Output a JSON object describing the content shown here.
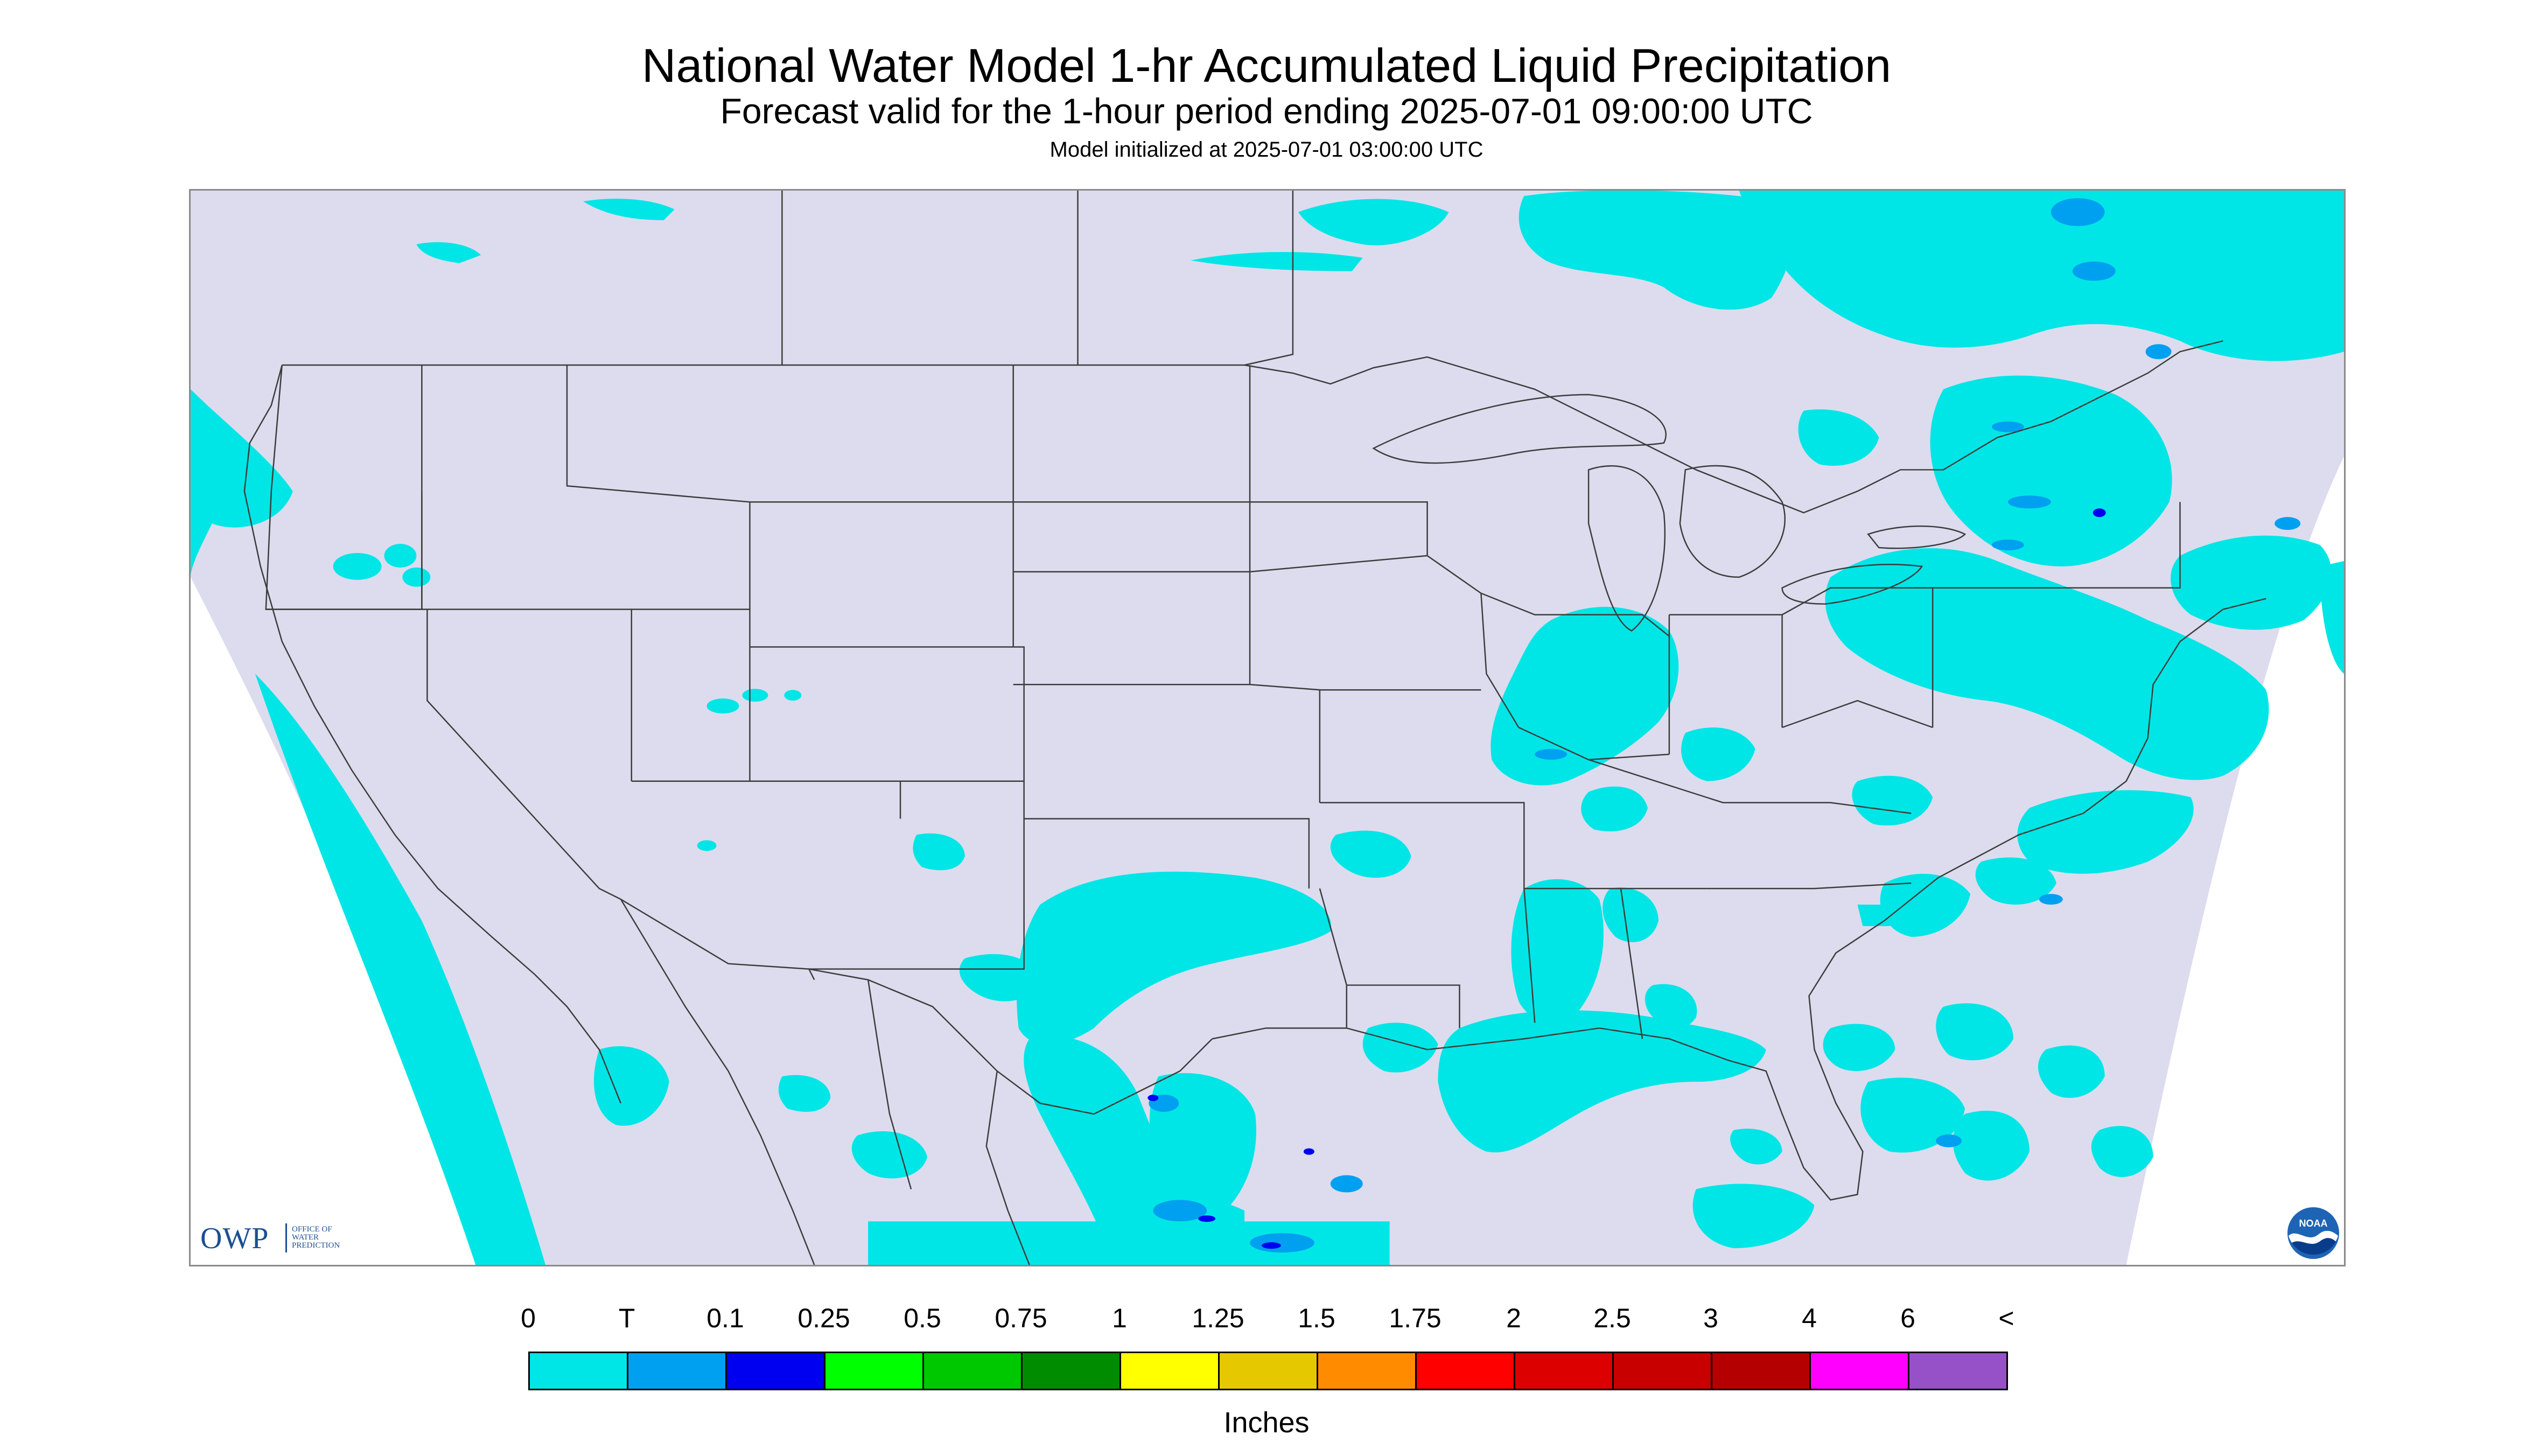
{
  "header": {
    "title": "National Water Model 1-hr Accumulated Liquid Precipitation",
    "subtitle": "Forecast valid for the 1-hour period ending 2025-07-01 09:00:00 UTC",
    "init": "Model initialized at 2025-07-01 03:00:00 UTC"
  },
  "map": {
    "background_color": "#dcdcee",
    "outside_color": "#ffffff",
    "boundary_color": "#3c3c3c",
    "light_precip_color": "#00e6e6"
  },
  "logos": {
    "owp_letters": "OWP",
    "owp_lines": [
      "OFFICE OF",
      "WATER",
      "PREDICTION"
    ],
    "noaa": "NOAA"
  },
  "legend": {
    "tick_labels": [
      "0",
      "T",
      "0.1",
      "0.25",
      "0.5",
      "0.75",
      "1",
      "1.25",
      "1.5",
      "1.75",
      "2",
      "2.5",
      "3",
      "4",
      "6",
      "<"
    ],
    "bin_colors": [
      "#dcdcee",
      "#00e6e6",
      "#00a0f0",
      "#0000f0",
      "#00ff00",
      "#00c800",
      "#008c00",
      "#ffff00",
      "#e6c800",
      "#ff8c00",
      "#ff0000",
      "#dc0000",
      "#c80000",
      "#b40000",
      "#ff00ff",
      "#9650c8"
    ],
    "units": "Inches"
  }
}
